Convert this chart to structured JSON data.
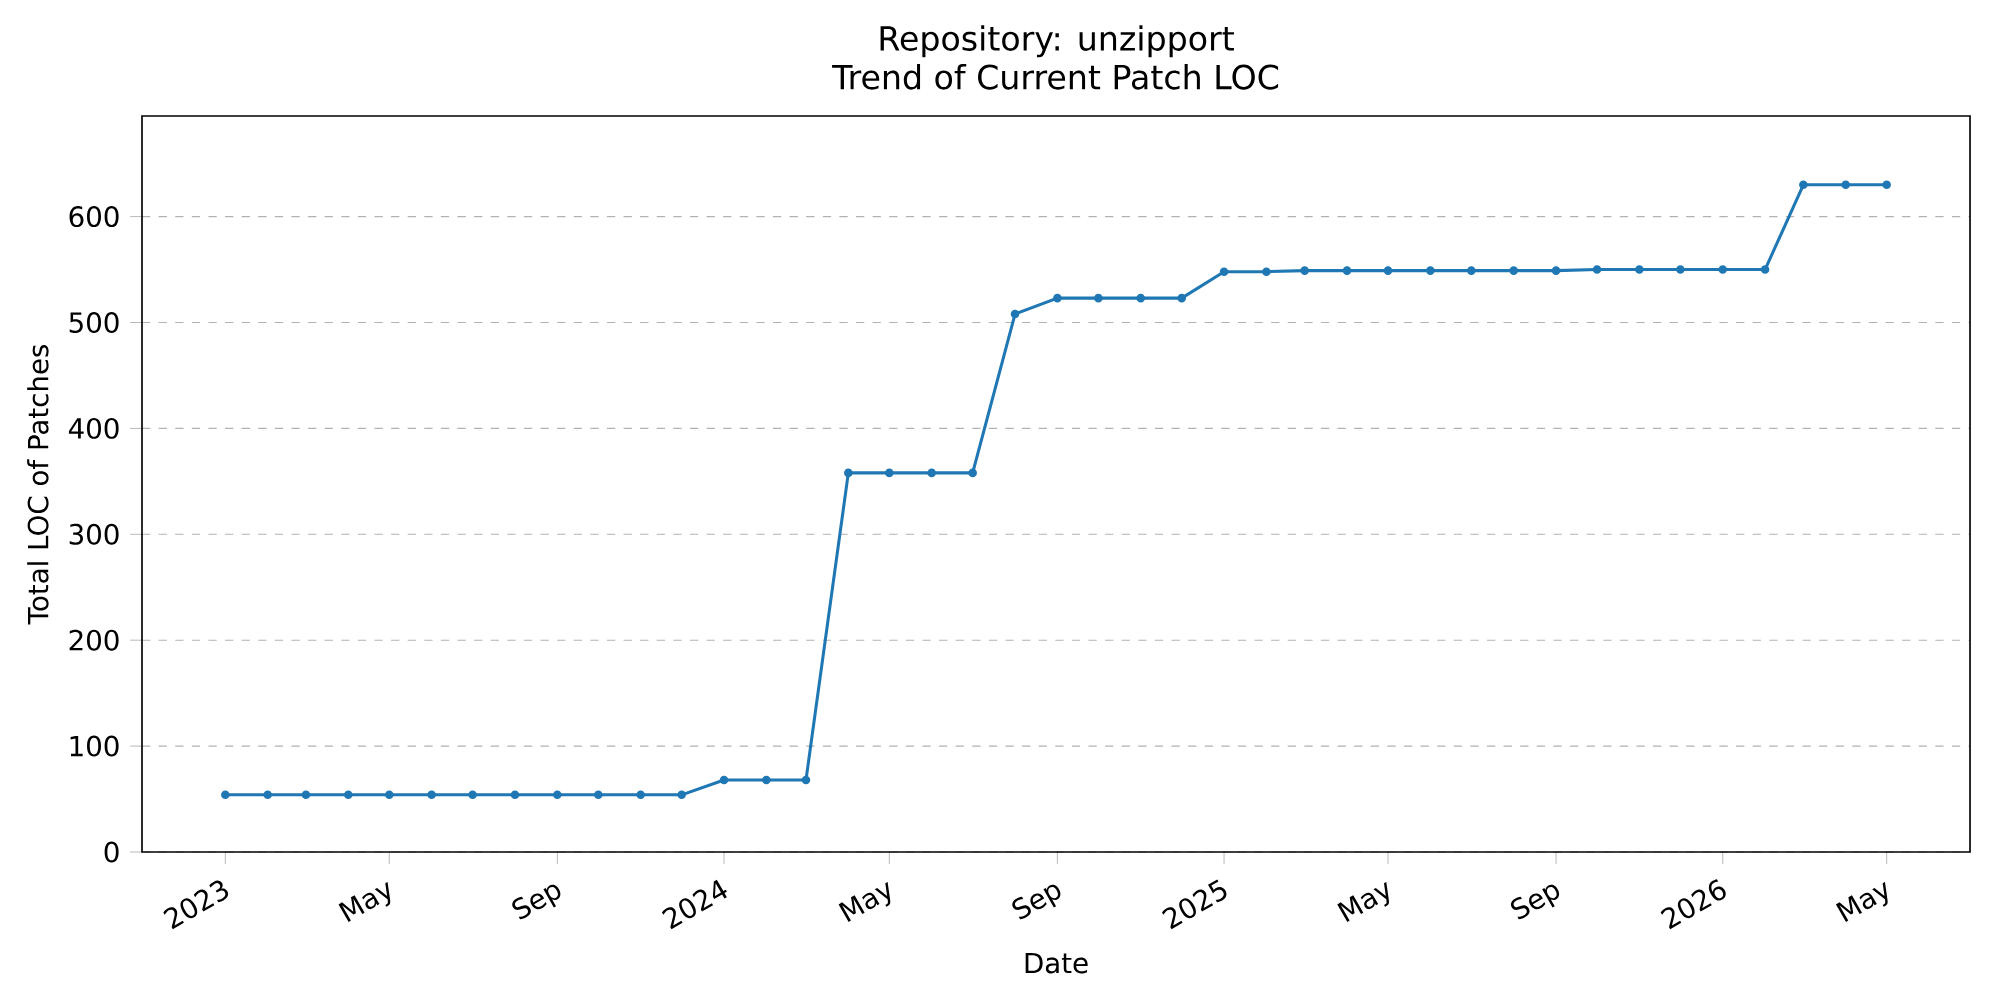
{
  "chart_data": {
    "type": "line",
    "title": "Repository: unzipport",
    "subtitle": "Trend of Current Patch LOC",
    "xlabel": "Date",
    "ylabel": "Total LOC of Patches",
    "x": [
      "2023-01",
      "2023-02",
      "2023-03",
      "2023-04",
      "2023-05",
      "2023-06",
      "2023-07",
      "2023-08",
      "2023-09",
      "2023-10",
      "2023-11",
      "2023-12",
      "2024-01",
      "2024-02",
      "2024-03",
      "2024-04",
      "2024-05",
      "2024-06",
      "2024-07",
      "2024-08",
      "2024-09",
      "2024-10",
      "2024-11",
      "2024-12",
      "2025-01",
      "2025-02",
      "2025-03",
      "2025-04",
      "2025-05",
      "2025-06",
      "2025-07",
      "2025-08",
      "2025-09",
      "2025-10",
      "2025-11",
      "2025-12",
      "2026-01",
      "2026-02",
      "2026-03",
      "2026-04",
      "2026-05"
    ],
    "series": [
      {
        "color": "#1f77b4",
        "values": [
          54,
          54,
          54,
          54,
          54,
          54,
          54,
          54,
          54,
          54,
          54,
          54,
          68,
          68,
          68,
          358,
          358,
          358,
          358,
          508,
          523,
          523,
          523,
          523,
          548,
          548,
          549,
          549,
          549,
          549,
          549,
          549,
          549,
          550,
          550,
          550,
          550,
          550,
          630,
          630,
          630
        ]
      }
    ],
    "xlim": [
      "2022-11-01",
      "2026-07-01"
    ],
    "ylim": [
      0,
      695
    ],
    "xticks": [
      {
        "value": "2023-01",
        "label": "2023"
      },
      {
        "value": "2023-05",
        "label": "May"
      },
      {
        "value": "2023-09",
        "label": "Sep"
      },
      {
        "value": "2024-01",
        "label": "2024"
      },
      {
        "value": "2024-05",
        "label": "May"
      },
      {
        "value": "2024-09",
        "label": "Sep"
      },
      {
        "value": "2025-01",
        "label": "2025"
      },
      {
        "value": "2025-05",
        "label": "May"
      },
      {
        "value": "2025-09",
        "label": "Sep"
      },
      {
        "value": "2026-01",
        "label": "2026"
      },
      {
        "value": "2026-05",
        "label": "May"
      }
    ],
    "yticks": [
      0,
      100,
      200,
      300,
      400,
      500,
      600
    ],
    "grid": "y",
    "marker": "circle",
    "line_style": "solid"
  }
}
